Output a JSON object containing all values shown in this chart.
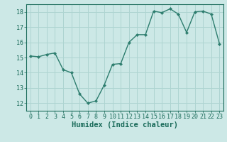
{
  "x": [
    0,
    1,
    2,
    3,
    4,
    5,
    6,
    7,
    8,
    9,
    10,
    11,
    12,
    13,
    14,
    15,
    16,
    17,
    18,
    19,
    20,
    21,
    22,
    23
  ],
  "y": [
    15.1,
    15.05,
    15.2,
    15.3,
    14.2,
    14.0,
    12.6,
    12.0,
    12.15,
    13.2,
    14.55,
    14.6,
    16.0,
    16.5,
    16.5,
    18.05,
    17.95,
    18.2,
    17.85,
    16.65,
    18.0,
    18.05,
    17.85,
    15.9
  ],
  "xlabel": "Humidex (Indice chaleur)",
  "xlim": [
    -0.5,
    23.5
  ],
  "ylim": [
    11.5,
    18.5
  ],
  "yticks": [
    12,
    13,
    14,
    15,
    16,
    17,
    18
  ],
  "xticks": [
    0,
    1,
    2,
    3,
    4,
    5,
    6,
    7,
    8,
    9,
    10,
    11,
    12,
    13,
    14,
    15,
    16,
    17,
    18,
    19,
    20,
    21,
    22,
    23
  ],
  "line_color": "#2d7d6e",
  "marker_color": "#2d7d6e",
  "bg_color": "#cce8e6",
  "grid_color": "#aed4d1",
  "tick_color": "#1a6b5a",
  "label_fontsize": 7.5,
  "tick_fontsize": 6.0
}
